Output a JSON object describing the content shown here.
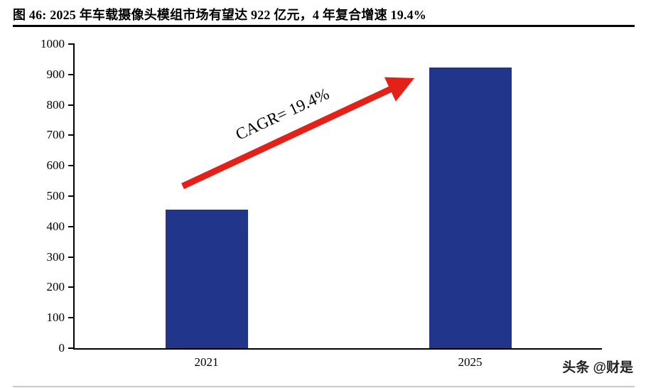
{
  "header": {
    "title": "图 46:  2025 年车载摄像头模组市场有望达 922 亿元，4 年复合增速 19.4%"
  },
  "chart_data": {
    "type": "bar",
    "title": "2025 年车载摄像头模组市场有望达 922 亿元，4 年复合增速 19.4%",
    "categories": [
      "2021",
      "2025"
    ],
    "values": [
      455,
      922
    ],
    "xlabel": "",
    "ylabel": "",
    "ylim": [
      0,
      1000
    ],
    "ytick_step": 100,
    "grid": false,
    "bar_color": "#21368B",
    "annotation": {
      "label": "CAGR= 19.4%",
      "color": "#E32119"
    }
  },
  "footer": {
    "watermark": "头条 @财是"
  }
}
